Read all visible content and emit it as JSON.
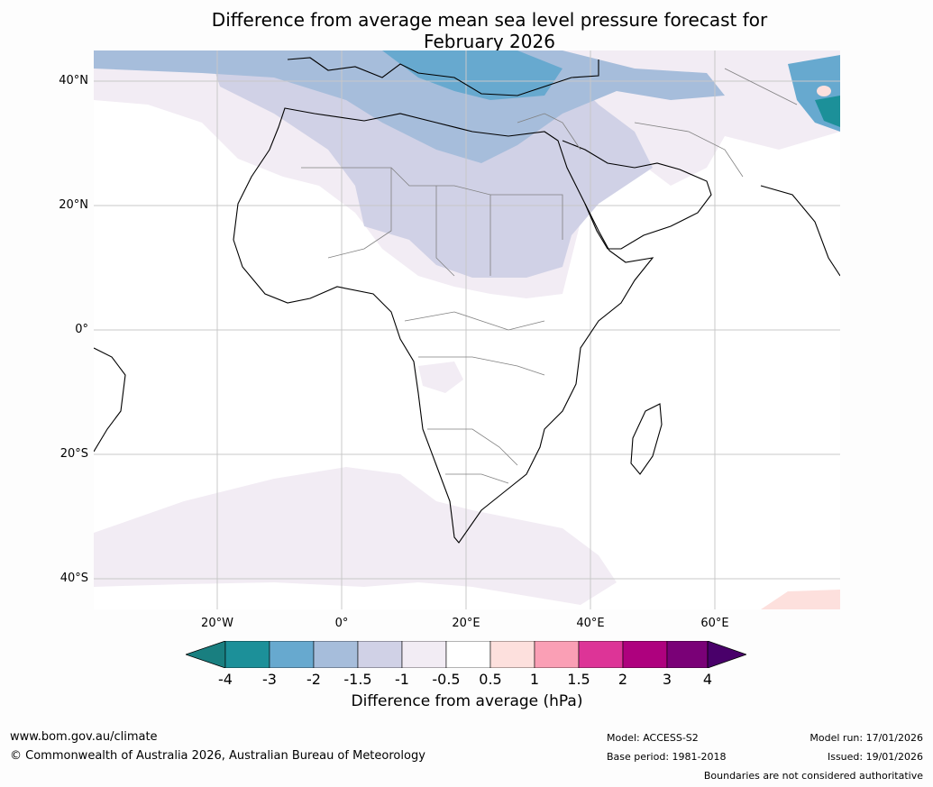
{
  "title_line1": "Difference from average mean sea level pressure forecast for",
  "title_line2": "February 2026",
  "lat_labels": [
    "40°N",
    "20°N",
    "0°",
    "20°S",
    "40°S"
  ],
  "lon_labels": [
    "20°W",
    "0°",
    "20°E",
    "40°E",
    "60°E"
  ],
  "colorbar": {
    "ticks": [
      "-4",
      "-3",
      "-2",
      "-1.5",
      "-1",
      "-0.5",
      "0.5",
      "1",
      "1.5",
      "2",
      "3",
      "4"
    ],
    "colors": [
      "#197f80",
      "#1c9099",
      "#67a9cf",
      "#a6bddb",
      "#d0d1e6",
      "#f2ecf4",
      "#ffffff",
      "#fde0dd",
      "#fa9fb5",
      "#dd3497",
      "#ae017e",
      "#7a0177",
      "#49006a"
    ],
    "label": "Difference from average (hPa)"
  },
  "footer": {
    "website": "www.bom.gov.au/climate",
    "copyright": "© Commonwealth of Australia 2026, Australian Bureau of Meteorology",
    "model": "Model: ACCESS-S2",
    "base_period": "Base period: 1981-2018",
    "model_run": "Model run: 17/01/2026",
    "issued": "Issued: 19/01/2026",
    "disclaimer": "Boundaries are not considered authoritative"
  }
}
